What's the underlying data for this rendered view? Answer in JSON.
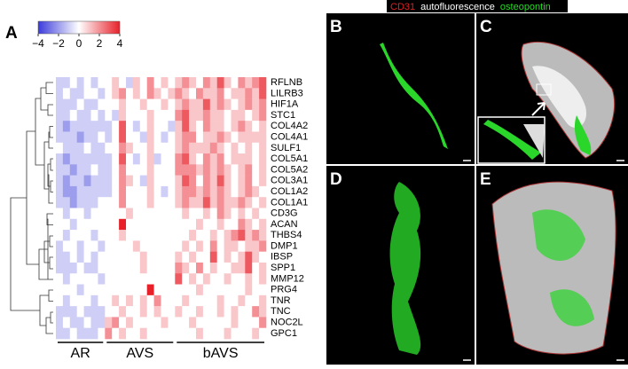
{
  "panel_labels": [
    "A",
    "B",
    "C",
    "D",
    "E"
  ],
  "image_legend": [
    {
      "name": "CD31",
      "color": "#e02020"
    },
    {
      "name": "autofluorescence",
      "color": "#ffffff"
    },
    {
      "name": "osteopontin",
      "color": "#22dd22"
    }
  ],
  "chart_data": {
    "type": "heatmap",
    "rows": [
      "RFLNB",
      "LILRB3",
      "HIF1A",
      "STC1",
      "COL4A2",
      "COL4A1",
      "SULF1",
      "COL5A1",
      "COL5A2",
      "COL3A1",
      "COL1A2",
      "COL1A1",
      "CD3G",
      "ACAN",
      "THBS4",
      "DMP1",
      "IBSP",
      "SPP1",
      "MMP12",
      "PRG4",
      "TNR",
      "TNC",
      "NOC2L",
      "GPC1"
    ],
    "columns": [
      "AR",
      "AR",
      "AR",
      "AR",
      "AR",
      "AR",
      "AR",
      "AVS",
      "AVS",
      "AVS",
      "AVS",
      "AVS",
      "AVS",
      "AVS",
      "AVS",
      "AVS",
      "AVS",
      "bAVS",
      "bAVS",
      "bAVS",
      "bAVS",
      "bAVS",
      "bAVS",
      "bAVS",
      "bAVS",
      "bAVS",
      "bAVS",
      "bAVS",
      "bAVS",
      "bAVS"
    ],
    "colormap": [
      "#3b3bdb",
      "#ffffff",
      "#e8202a"
    ],
    "clim": [
      -4,
      4
    ],
    "cticks": [
      {
        "value": -4,
        "label": "−4"
      },
      {
        "value": -2,
        "label": "−2"
      },
      0,
      2,
      4
    ],
    "values": [
      [
        -1,
        -1,
        0,
        -1,
        0,
        -1,
        0,
        0,
        1,
        0,
        -1,
        1,
        0,
        2,
        0,
        1,
        0,
        1,
        2,
        1,
        0,
        2,
        1,
        3,
        1,
        0,
        2,
        1,
        2,
        3
      ],
      [
        -1,
        0,
        -1,
        -1,
        0,
        0,
        -1,
        0,
        1,
        2,
        0,
        1,
        0,
        2,
        1,
        0,
        1,
        2,
        1,
        0,
        2,
        1,
        1,
        2,
        0,
        1,
        1,
        2,
        1,
        3
      ],
      [
        -1,
        -1,
        -1,
        0,
        -1,
        -1,
        0,
        0,
        0,
        1,
        0,
        0,
        1,
        0,
        0,
        1,
        0,
        1,
        2,
        1,
        1,
        3,
        1,
        2,
        1,
        0,
        1,
        2,
        1,
        2
      ],
      [
        -1,
        -1,
        0,
        -1,
        -1,
        0,
        -1,
        0,
        -1,
        1,
        0,
        0,
        0,
        1,
        0,
        0,
        0,
        2,
        3,
        1,
        1,
        2,
        1,
        1,
        0,
        1,
        1,
        0,
        1,
        2
      ],
      [
        -1,
        -2,
        -1,
        -1,
        -1,
        -1,
        -1,
        -1,
        0,
        3,
        0,
        -1,
        0,
        1,
        0,
        0,
        -1,
        1,
        3,
        1,
        0,
        2,
        1,
        1,
        0,
        1,
        2,
        1,
        0,
        1
      ],
      [
        -1,
        -1,
        -1,
        -2,
        -1,
        -1,
        0,
        -1,
        0,
        3,
        0,
        0,
        -1,
        1,
        0,
        -1,
        0,
        1,
        2,
        2,
        0,
        1,
        1,
        2,
        1,
        0,
        1,
        1,
        1,
        1
      ],
      [
        0,
        -1,
        -1,
        -1,
        0,
        -1,
        -1,
        0,
        0,
        2,
        1,
        0,
        0,
        1,
        0,
        0,
        0,
        1,
        2,
        1,
        1,
        1,
        2,
        1,
        0,
        1,
        0,
        1,
        0,
        1
      ],
      [
        -1,
        -2,
        -1,
        -1,
        -1,
        -1,
        -1,
        -1,
        0,
        3,
        0,
        -1,
        0,
        1,
        -1,
        0,
        0,
        2,
        3,
        1,
        0,
        2,
        1,
        2,
        0,
        1,
        1,
        1,
        0,
        1
      ],
      [
        -1,
        -1,
        -2,
        -1,
        -1,
        0,
        -1,
        -1,
        0,
        2,
        0,
        0,
        0,
        1,
        0,
        0,
        0,
        2,
        2,
        2,
        1,
        2,
        1,
        2,
        1,
        0,
        1,
        2,
        0,
        1
      ],
      [
        -1,
        -2,
        -1,
        -1,
        -2,
        -1,
        -1,
        -1,
        0,
        2,
        1,
        0,
        -1,
        1,
        0,
        0,
        0,
        1,
        3,
        2,
        0,
        2,
        1,
        3,
        1,
        0,
        1,
        2,
        0,
        1
      ],
      [
        -1,
        -2,
        -2,
        -1,
        -1,
        -1,
        -1,
        -1,
        0,
        2,
        0,
        0,
        0,
        1,
        0,
        -1,
        0,
        1,
        2,
        2,
        1,
        2,
        1,
        2,
        1,
        0,
        1,
        2,
        1,
        0
      ],
      [
        -1,
        -1,
        -2,
        -1,
        -1,
        -1,
        0,
        0,
        0,
        2,
        0,
        0,
        0,
        1,
        0,
        0,
        0,
        1,
        2,
        1,
        1,
        3,
        1,
        2,
        1,
        1,
        2,
        1,
        0,
        1
      ],
      [
        0,
        -1,
        0,
        0,
        -1,
        0,
        0,
        0,
        0,
        0,
        1,
        0,
        0,
        0,
        0,
        0,
        0,
        0,
        1,
        0,
        0,
        1,
        0,
        2,
        1,
        0,
        1,
        0,
        1,
        0
      ],
      [
        0,
        0,
        -1,
        0,
        0,
        0,
        0,
        0,
        0,
        4,
        0,
        0,
        0,
        0,
        0,
        0,
        0,
        0,
        0,
        0,
        1,
        0,
        0,
        1,
        0,
        0,
        2,
        1,
        0,
        1
      ],
      [
        0,
        -1,
        0,
        0,
        0,
        -1,
        0,
        0,
        0,
        1,
        0,
        0,
        0,
        0,
        0,
        0,
        0,
        0,
        0,
        1,
        0,
        0,
        1,
        0,
        1,
        2,
        3,
        1,
        2,
        1
      ],
      [
        -1,
        0,
        0,
        -1,
        0,
        0,
        -1,
        0,
        0,
        0,
        0,
        1,
        0,
        0,
        0,
        0,
        0,
        0,
        1,
        0,
        1,
        0,
        2,
        0,
        1,
        1,
        0,
        1,
        1,
        2
      ],
      [
        -1,
        -1,
        0,
        -1,
        0,
        -1,
        0,
        0,
        0,
        0,
        0,
        0,
        1,
        0,
        0,
        0,
        0,
        1,
        0,
        1,
        0,
        0,
        3,
        0,
        1,
        0,
        1,
        3,
        1,
        0
      ],
      [
        -1,
        -1,
        -1,
        0,
        -1,
        -1,
        0,
        0,
        0,
        0,
        0,
        0,
        1,
        0,
        0,
        0,
        0,
        2,
        1,
        0,
        2,
        0,
        1,
        0,
        0,
        1,
        1,
        3,
        0,
        1
      ],
      [
        0,
        -1,
        0,
        0,
        0,
        0,
        -1,
        0,
        0,
        0,
        0,
        0,
        0,
        0,
        0,
        0,
        0,
        3,
        0,
        1,
        0,
        1,
        0,
        0,
        1,
        0,
        0,
        1,
        0,
        1
      ],
      [
        0,
        0,
        0,
        -1,
        0,
        0,
        0,
        0,
        0,
        0,
        0,
        0,
        0,
        4,
        0,
        0,
        0,
        0,
        0,
        0,
        1,
        0,
        0,
        0,
        0,
        0,
        0,
        1,
        0,
        0
      ],
      [
        0,
        -1,
        0,
        0,
        0,
        -1,
        0,
        0,
        1,
        0,
        1,
        0,
        1,
        0,
        2,
        0,
        0,
        0,
        1,
        0,
        0,
        0,
        0,
        1,
        0,
        0,
        1,
        0,
        0,
        1
      ],
      [
        -1,
        -1,
        -1,
        0,
        -1,
        -1,
        -1,
        0,
        0,
        1,
        0,
        0,
        1,
        0,
        1,
        0,
        0,
        1,
        0,
        0,
        1,
        0,
        0,
        1,
        0,
        1,
        0,
        0,
        2,
        1
      ],
      [
        -1,
        0,
        -1,
        -1,
        0,
        -1,
        -1,
        1,
        2,
        0,
        1,
        0,
        0,
        0,
        0,
        1,
        0,
        0,
        0,
        1,
        0,
        0,
        0,
        0,
        0,
        1,
        0,
        0,
        0,
        2
      ],
      [
        -1,
        -1,
        0,
        -1,
        -1,
        -1,
        0,
        2,
        0,
        1,
        0,
        0,
        1,
        0,
        0,
        0,
        0,
        0,
        0,
        0,
        1,
        0,
        0,
        0,
        1,
        0,
        0,
        0,
        1,
        0
      ]
    ]
  }
}
